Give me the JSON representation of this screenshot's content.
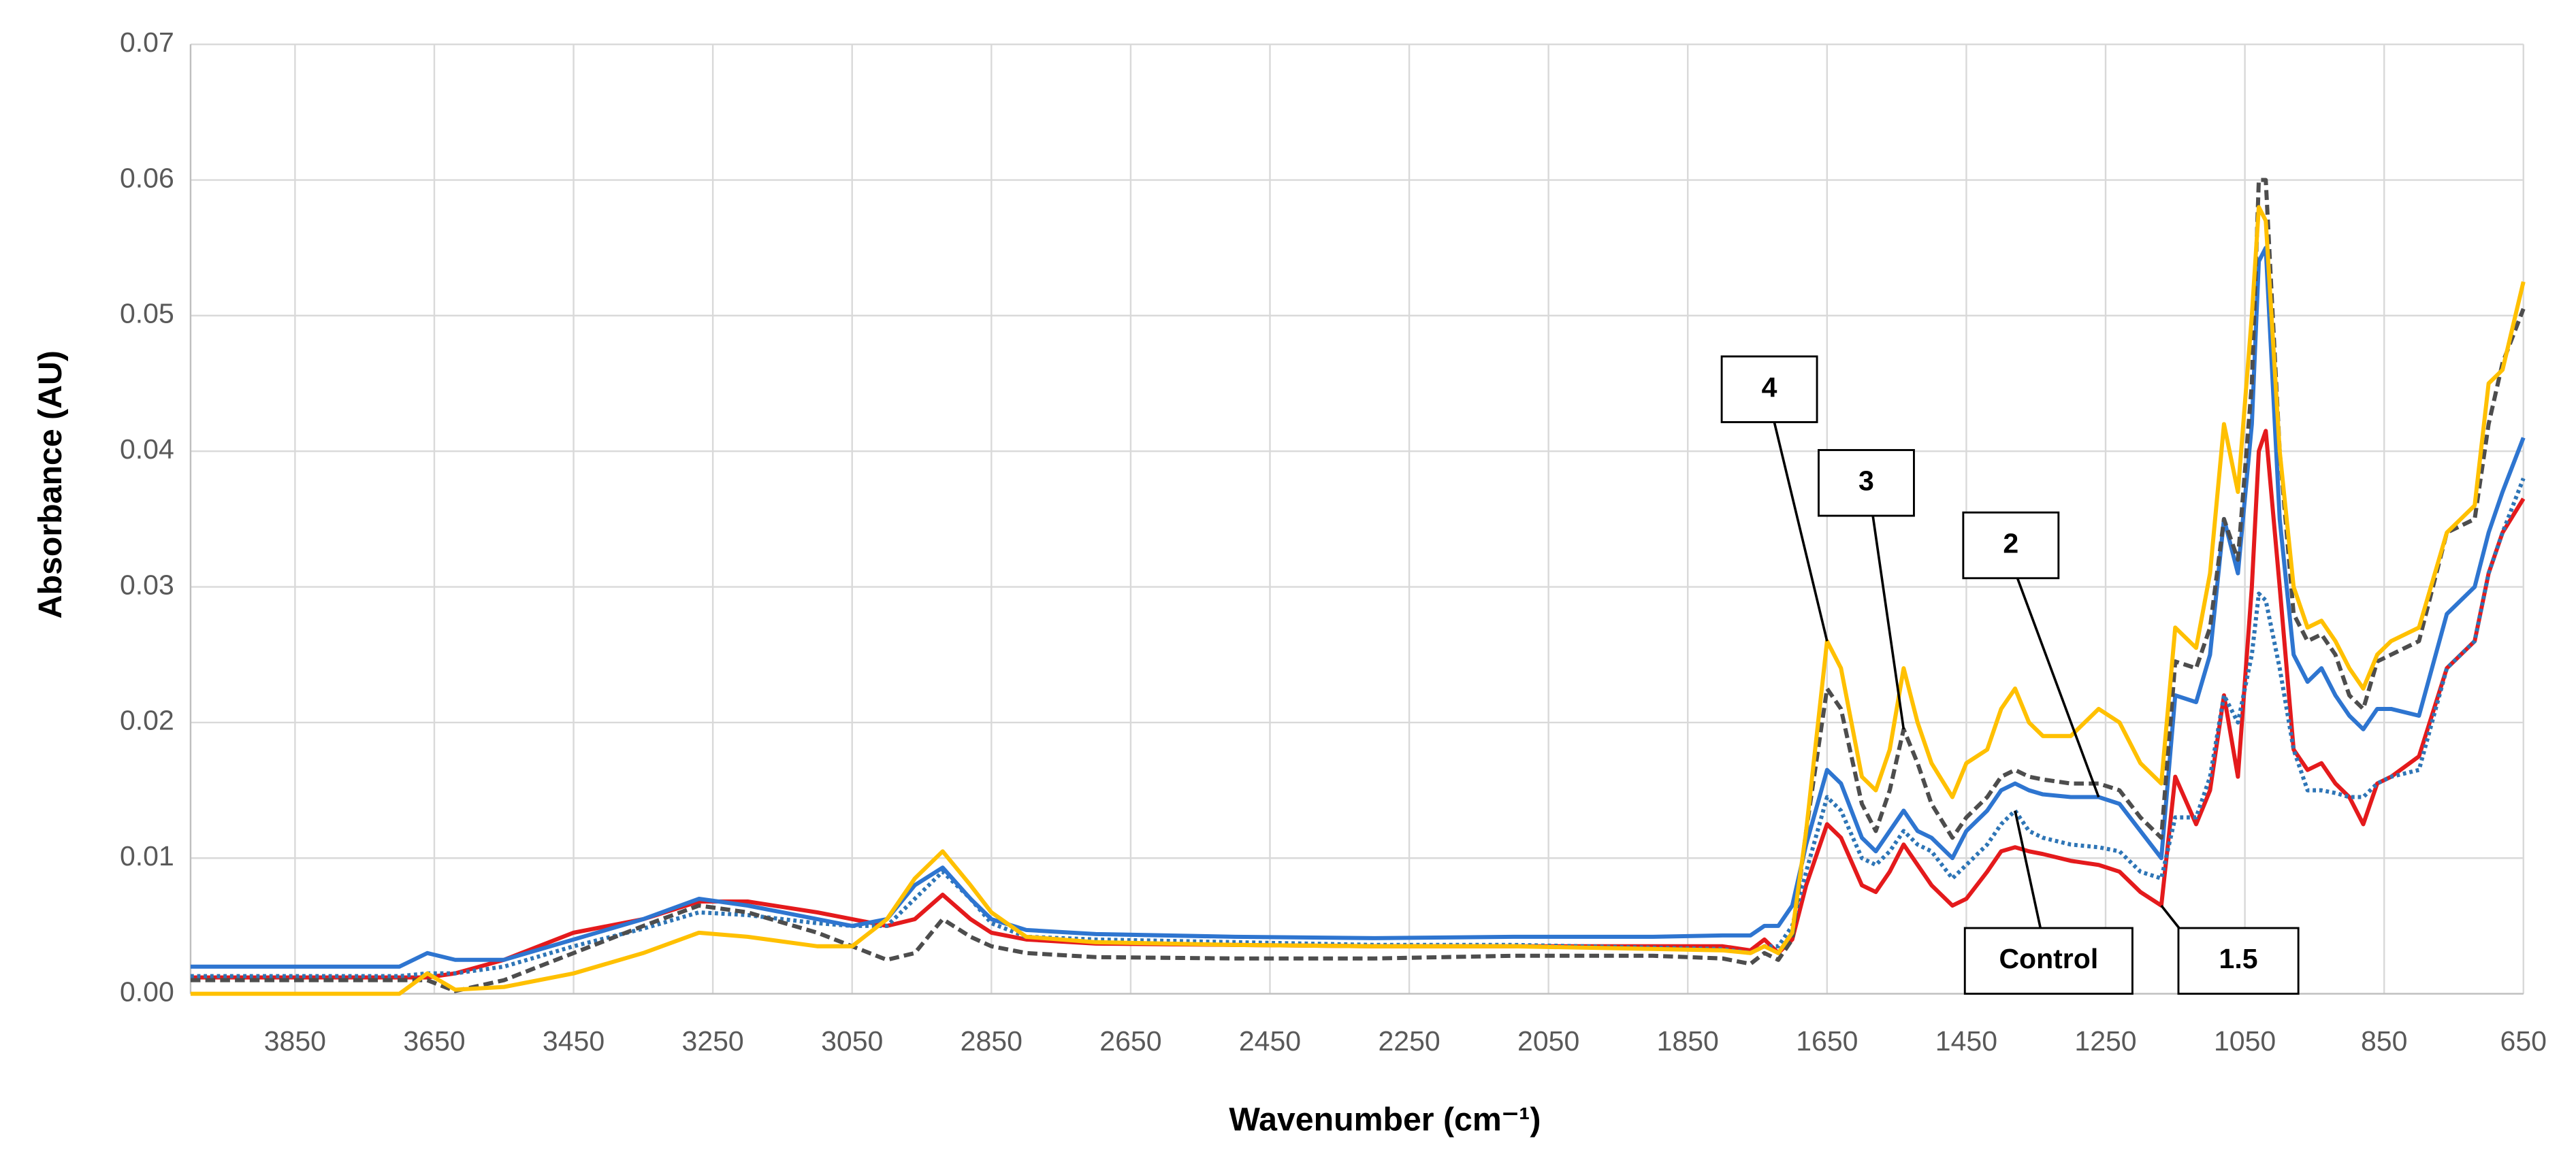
{
  "chart_data": {
    "type": "line",
    "x_label": "Wavenumber (cm⁻¹)",
    "y_label": "Absorbance (AU)",
    "xlim": [
      4000,
      650
    ],
    "ylim": [
      0,
      0.07
    ],
    "xticks": [
      3850,
      3650,
      3450,
      3250,
      3050,
      2850,
      2650,
      2450,
      2250,
      2050,
      1850,
      1650,
      1450,
      1250,
      1050,
      850,
      650
    ],
    "yticks": [
      {
        "value": 0,
        "label": "0.00"
      },
      0.01,
      0.02,
      0.03,
      0.04,
      0.05,
      0.06,
      0.07
    ],
    "grid": true,
    "x": [
      4000,
      3900,
      3800,
      3700,
      3660,
      3620,
      3550,
      3450,
      3350,
      3270,
      3200,
      3100,
      3050,
      3000,
      2960,
      2920,
      2880,
      2850,
      2800,
      2700,
      2500,
      2300,
      2100,
      1900,
      1800,
      1760,
      1740,
      1720,
      1700,
      1680,
      1650,
      1630,
      1600,
      1580,
      1560,
      1540,
      1520,
      1500,
      1470,
      1450,
      1420,
      1400,
      1380,
      1360,
      1340,
      1300,
      1260,
      1230,
      1200,
      1170,
      1150,
      1120,
      1100,
      1080,
      1060,
      1040,
      1030,
      1020,
      1000,
      980,
      960,
      940,
      920,
      900,
      880,
      860,
      840,
      800,
      760,
      720,
      700,
      680,
      650
    ],
    "series": [
      {
        "name": "1.5",
        "color": "#e41a1c",
        "dash": "solid",
        "values": [
          0.0012,
          0.0012,
          0.0012,
          0.0012,
          0.0012,
          0.0015,
          0.0025,
          0.0045,
          0.0055,
          0.0068,
          0.0068,
          0.006,
          0.0055,
          0.005,
          0.0055,
          0.0073,
          0.0055,
          0.0045,
          0.004,
          0.0037,
          0.0036,
          0.0035,
          0.0035,
          0.0035,
          0.0035,
          0.0032,
          0.004,
          0.003,
          0.004,
          0.008,
          0.0125,
          0.0115,
          0.008,
          0.0075,
          0.009,
          0.011,
          0.0095,
          0.008,
          0.0065,
          0.007,
          0.009,
          0.0105,
          0.0108,
          0.0105,
          0.0103,
          0.0098,
          0.0095,
          0.009,
          0.0075,
          0.0065,
          0.016,
          0.0125,
          0.015,
          0.022,
          0.016,
          0.03,
          0.04,
          0.0415,
          0.03,
          0.018,
          0.0165,
          0.017,
          0.0155,
          0.0145,
          0.0125,
          0.0155,
          0.016,
          0.0175,
          0.024,
          0.026,
          0.031,
          0.034,
          0.0365
        ]
      },
      {
        "name": "Control",
        "color": "#2e75b6",
        "dash": "dotted",
        "values": [
          0.0013,
          0.0013,
          0.0013,
          0.0013,
          0.0015,
          0.0015,
          0.002,
          0.0035,
          0.0048,
          0.006,
          0.0058,
          0.0052,
          0.005,
          0.005,
          0.007,
          0.009,
          0.007,
          0.0052,
          0.0042,
          0.004,
          0.0038,
          0.0036,
          0.0036,
          0.0034,
          0.0033,
          0.003,
          0.0035,
          0.0035,
          0.005,
          0.009,
          0.0145,
          0.0135,
          0.01,
          0.0095,
          0.0105,
          0.012,
          0.011,
          0.0105,
          0.0085,
          0.0095,
          0.011,
          0.0125,
          0.0135,
          0.012,
          0.0115,
          0.011,
          0.0108,
          0.0105,
          0.009,
          0.0085,
          0.013,
          0.013,
          0.016,
          0.022,
          0.02,
          0.025,
          0.0295,
          0.029,
          0.024,
          0.018,
          0.015,
          0.015,
          0.0148,
          0.0145,
          0.0145,
          0.0155,
          0.016,
          0.0165,
          0.024,
          0.026,
          0.031,
          0.034,
          0.038
        ]
      },
      {
        "name": "2",
        "color": "#2e75d0",
        "dash": "solid",
        "values": [
          0.002,
          0.002,
          0.002,
          0.002,
          0.003,
          0.0025,
          0.0025,
          0.004,
          0.0055,
          0.007,
          0.0065,
          0.0055,
          0.005,
          0.0055,
          0.008,
          0.0093,
          0.007,
          0.0055,
          0.0047,
          0.0044,
          0.0042,
          0.0041,
          0.0042,
          0.0042,
          0.0043,
          0.0043,
          0.005,
          0.005,
          0.0065,
          0.011,
          0.0165,
          0.0155,
          0.0115,
          0.0105,
          0.012,
          0.0135,
          0.012,
          0.0115,
          0.01,
          0.012,
          0.0135,
          0.015,
          0.0155,
          0.015,
          0.0147,
          0.0145,
          0.0145,
          0.014,
          0.012,
          0.01,
          0.022,
          0.0215,
          0.025,
          0.035,
          0.031,
          0.042,
          0.054,
          0.055,
          0.035,
          0.025,
          0.023,
          0.024,
          0.022,
          0.0205,
          0.0195,
          0.021,
          0.021,
          0.0205,
          0.028,
          0.03,
          0.034,
          0.037,
          0.041
        ]
      },
      {
        "name": "3",
        "color": "#4d4d4d",
        "dash": "dashed",
        "values": [
          0.001,
          0.001,
          0.001,
          0.001,
          0.001,
          0.0002,
          0.001,
          0.003,
          0.005,
          0.0065,
          0.006,
          0.0045,
          0.0035,
          0.0025,
          0.003,
          0.0055,
          0.0042,
          0.0035,
          0.003,
          0.0027,
          0.0026,
          0.0026,
          0.0028,
          0.0028,
          0.0026,
          0.0022,
          0.003,
          0.0025,
          0.004,
          0.012,
          0.0225,
          0.021,
          0.014,
          0.012,
          0.015,
          0.0195,
          0.017,
          0.014,
          0.0115,
          0.013,
          0.0145,
          0.016,
          0.0165,
          0.016,
          0.0158,
          0.0155,
          0.0155,
          0.015,
          0.013,
          0.0115,
          0.0245,
          0.024,
          0.027,
          0.035,
          0.032,
          0.045,
          0.06,
          0.06,
          0.04,
          0.028,
          0.026,
          0.0265,
          0.025,
          0.022,
          0.021,
          0.0245,
          0.025,
          0.026,
          0.034,
          0.035,
          0.042,
          0.0465,
          0.0505
        ]
      },
      {
        "name": "4",
        "color": "#ffc000",
        "dash": "solid",
        "values": [
          0,
          0,
          0,
          0,
          0.0015,
          0.0003,
          0.0005,
          0.0015,
          0.003,
          0.0045,
          0.0042,
          0.0035,
          0.0035,
          0.0055,
          0.0085,
          0.0105,
          0.008,
          0.006,
          0.0042,
          0.0038,
          0.0036,
          0.0035,
          0.0035,
          0.0033,
          0.0032,
          0.003,
          0.0035,
          0.003,
          0.0045,
          0.012,
          0.026,
          0.024,
          0.016,
          0.015,
          0.018,
          0.024,
          0.02,
          0.017,
          0.0145,
          0.017,
          0.018,
          0.021,
          0.0225,
          0.02,
          0.019,
          0.019,
          0.021,
          0.02,
          0.017,
          0.0155,
          0.027,
          0.0255,
          0.031,
          0.042,
          0.037,
          0.05,
          0.058,
          0.057,
          0.04,
          0.03,
          0.027,
          0.0275,
          0.026,
          0.024,
          0.0225,
          0.025,
          0.026,
          0.027,
          0.034,
          0.036,
          0.045,
          0.046,
          0.0525
        ]
      }
    ]
  }
}
